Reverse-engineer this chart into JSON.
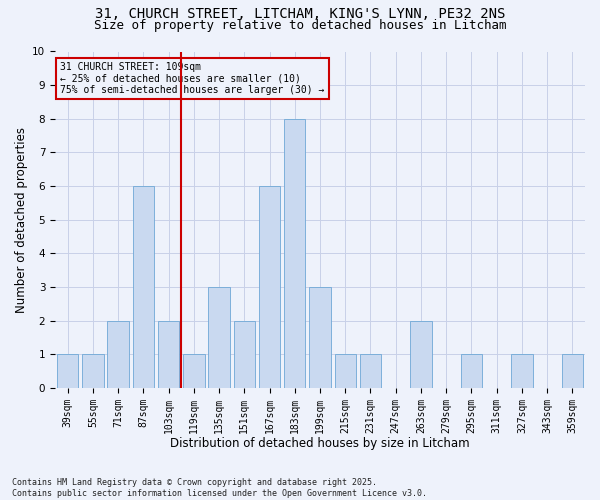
{
  "title1": "31, CHURCH STREET, LITCHAM, KING'S LYNN, PE32 2NS",
  "title2": "Size of property relative to detached houses in Litcham",
  "xlabel": "Distribution of detached houses by size in Litcham",
  "ylabel": "Number of detached properties",
  "categories": [
    "39sqm",
    "55sqm",
    "71sqm",
    "87sqm",
    "103sqm",
    "119sqm",
    "135sqm",
    "151sqm",
    "167sqm",
    "183sqm",
    "199sqm",
    "215sqm",
    "231sqm",
    "247sqm",
    "263sqm",
    "279sqm",
    "295sqm",
    "311sqm",
    "327sqm",
    "343sqm",
    "359sqm"
  ],
  "values": [
    1,
    1,
    2,
    6,
    2,
    1,
    3,
    2,
    6,
    8,
    3,
    1,
    1,
    0,
    2,
    0,
    1,
    0,
    1,
    0,
    1
  ],
  "bar_color": "#c9d9f0",
  "bar_edge_color": "#6fa8d6",
  "vline_x_index": 4.5,
  "vline_color": "#cc0000",
  "annotation_text": "31 CHURCH STREET: 109sqm\n← 25% of detached houses are smaller (10)\n75% of semi-detached houses are larger (30) →",
  "box_color": "#cc0000",
  "ylim": [
    0,
    10
  ],
  "yticks": [
    0,
    1,
    2,
    3,
    4,
    5,
    6,
    7,
    8,
    9,
    10
  ],
  "footer": "Contains HM Land Registry data © Crown copyright and database right 2025.\nContains public sector information licensed under the Open Government Licence v3.0.",
  "bg_color": "#eef2fb",
  "grid_color": "#c8d0e8",
  "title_fontsize": 10,
  "subtitle_fontsize": 9,
  "tick_fontsize": 7,
  "label_fontsize": 8.5,
  "footer_fontsize": 6
}
